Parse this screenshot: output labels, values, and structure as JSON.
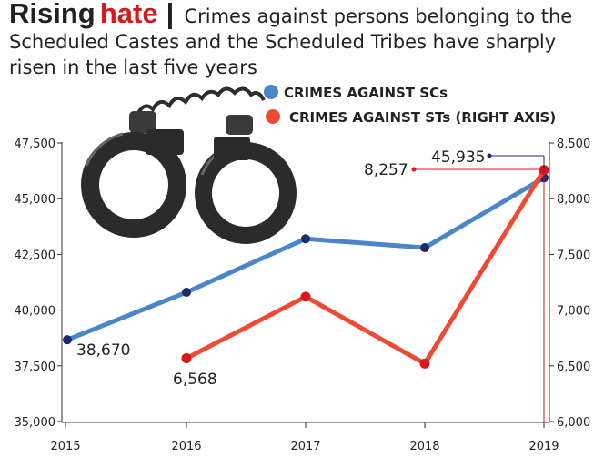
{
  "headline": {
    "title": "Rising",
    "title_accent": "hate",
    "separator": "|",
    "subtitle": "Crimes against persons belonging to the Scheduled Castes and the Scheduled Tribes have sharply risen in the last five years"
  },
  "colors": {
    "sc": "#4a86c8",
    "st": "#ee4b36",
    "accent": "#d7191c",
    "marker": "#1f2a6b"
  },
  "icons": [
    "handcuffs-icon"
  ],
  "chart_data": {
    "type": "line",
    "x": [
      "2015",
      "2016",
      "2017",
      "2018",
      "2019"
    ],
    "series": [
      {
        "name": "CRIMES AGAINST SCs",
        "axis": "left",
        "values": [
          38670,
          40800,
          43200,
          42800,
          45935
        ]
      },
      {
        "name": "CRIMES AGAINST STs (RIGHT AXIS)",
        "axis": "right",
        "values": [
          null,
          6568,
          7120,
          6520,
          8257
        ]
      }
    ],
    "left_axis": {
      "ylim": [
        35000,
        47500
      ],
      "ticks": [
        "35,000",
        "37,500",
        "40,000",
        "42,500",
        "45,000",
        "47,500"
      ]
    },
    "right_axis": {
      "ylim": [
        6000,
        8500
      ],
      "ticks": [
        "6,000",
        "6,500",
        "7,000",
        "7,500",
        "8,000",
        "8,500"
      ]
    },
    "data_labels": [
      "38,670",
      "6,568",
      "8,257",
      "45,935"
    ]
  }
}
